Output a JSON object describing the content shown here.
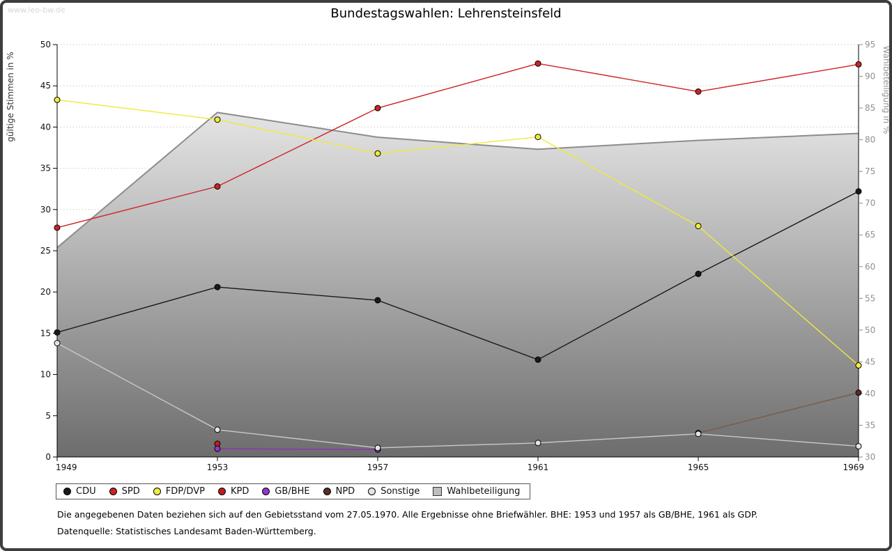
{
  "watermark": "www.leo-bw.de",
  "footnotes": {
    "line1": "Die angegebenen Daten beziehen sich auf den Gebietsstand vom 27.05.1970. Alle Ergebnisse ohne Briefwähler. BHE: 1953 und 1957 als GB/BHE, 1961 als GDP.",
    "line2": "Datenquelle: Statistisches Landesamt Baden-Württemberg."
  },
  "chart_data": {
    "type": "line",
    "title": "Bundestagswahlen: Lehrensteinsfeld",
    "x": [
      1949,
      1953,
      1957,
      1961,
      1965,
      1969
    ],
    "ylabel_left": "gültige Stimmen in %",
    "ylabel_right": "Wahlbeteiligung in %",
    "ylim_left": [
      0,
      50
    ],
    "ylim_right": [
      30,
      95
    ],
    "ytick_step": 5,
    "grid": "horizontal-dotted",
    "legend_position": "bottom",
    "series": [
      {
        "name": "CDU",
        "axis": "left",
        "color": "#1a1a1a",
        "marker_fill": "#1a1a1a",
        "values": [
          15.1,
          20.6,
          19.0,
          11.8,
          22.2,
          32.2
        ]
      },
      {
        "name": "SPD",
        "axis": "left",
        "color": "#cc2327",
        "marker_fill": "#cc2327",
        "values": [
          27.8,
          32.8,
          42.3,
          47.7,
          44.3,
          47.6
        ]
      },
      {
        "name": "FDP/DVP",
        "axis": "left",
        "color": "#eeea3c",
        "marker_fill": "#f0ec40",
        "values": [
          43.3,
          40.9,
          36.8,
          38.8,
          28.0,
          11.1
        ]
      },
      {
        "name": "KPD",
        "axis": "left",
        "color": "#b01c1c",
        "marker_fill": "#c01e1e",
        "values": [
          null,
          1.6,
          null,
          null,
          null,
          null
        ]
      },
      {
        "name": "GB/BHE",
        "axis": "left",
        "color": "#8f2fbf",
        "marker_fill": "#9437c2",
        "values": [
          null,
          1.0,
          0.9,
          null,
          null,
          null
        ]
      },
      {
        "name": "NPD",
        "axis": "left",
        "color": "#7a5b49",
        "marker_fill": "#5a2d20",
        "values": [
          null,
          null,
          null,
          null,
          2.9,
          7.8
        ]
      },
      {
        "name": "Sonstige",
        "axis": "left",
        "color": "#c9c9c9",
        "marker_fill": "#e4e4e4",
        "values": [
          13.8,
          3.3,
          1.1,
          1.7,
          2.8,
          1.3
        ]
      },
      {
        "name": "Wahlbeteiligung",
        "axis": "right",
        "type": "area",
        "color": "#8c8c8c",
        "marker_fill": "#bdbdbd",
        "values": [
          63.0,
          84.3,
          80.4,
          78.5,
          79.9,
          81.0
        ]
      }
    ]
  }
}
